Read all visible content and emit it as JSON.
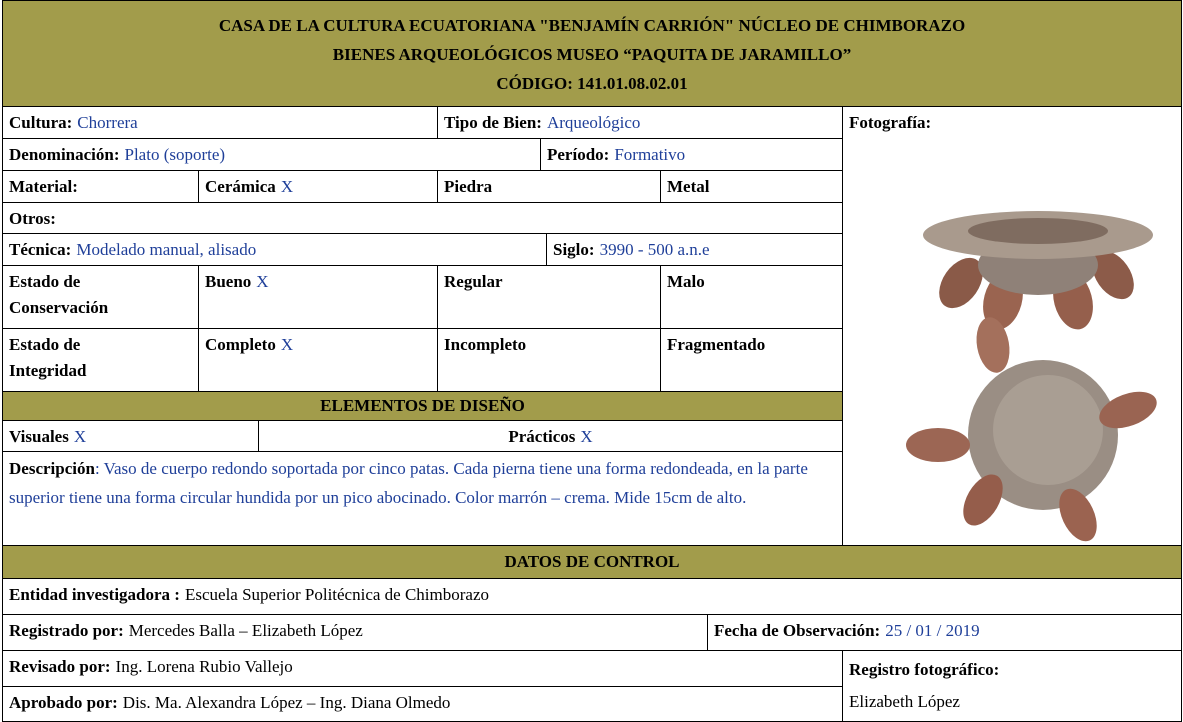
{
  "header": {
    "lines": [
      "CASA DE LA CULTURA ECUATORIANA \"BENJAMÍN CARRIÓN\" NÚCLEO DE CHIMBORAZO",
      "BIENES ARQUEOLÓGICOS MUSEO “PAQUITA DE JARAMILLO”",
      "CÓDIGO: 141.01.08.02.01"
    ]
  },
  "cultura": {
    "label": "Cultura:",
    "value": "Chorrera"
  },
  "tipo_bien": {
    "label": "Tipo de Bien:",
    "value": "Arqueológico"
  },
  "fotografia": {
    "label": "Fotografía:"
  },
  "denominacion": {
    "label": "Denominación:",
    "value": "Plato (soporte)"
  },
  "periodo": {
    "label": "Período:",
    "value": "Formativo"
  },
  "material": {
    "label": "Material:",
    "options": [
      {
        "label": "Cerámica",
        "mark": "X"
      },
      {
        "label": "Piedra"
      },
      {
        "label": "Metal"
      }
    ]
  },
  "otros": {
    "label": "Otros:"
  },
  "tecnica": {
    "label": "Técnica:",
    "value": "Modelado manual, alisado"
  },
  "siglo": {
    "label": "Siglo:",
    "value": "3990 - 500 a.n.e"
  },
  "conservacion": {
    "label": "Estado de Conservación",
    "options": [
      {
        "label": "Bueno",
        "mark": "X"
      },
      {
        "label": "Regular"
      },
      {
        "label": "Malo"
      }
    ]
  },
  "integridad": {
    "label": "Estado de Integridad",
    "options": [
      {
        "label": "Completo",
        "mark": "X"
      },
      {
        "label": "Incompleto"
      },
      {
        "label": "Fragmentado"
      }
    ]
  },
  "elementos": {
    "title": "ELEMENTOS DE DISEÑO",
    "visuales": {
      "label": "Visuales",
      "mark": "X"
    },
    "practicos": {
      "label": "Prácticos",
      "mark": "X"
    }
  },
  "descripcion": {
    "label": "Descripción",
    "value": ": Vaso de cuerpo redondo soportada por cinco patas. Cada pierna tiene una forma redondeada, en la parte superior tiene una forma circular hundida por un pico abocinado. Color marrón – crema. Mide 15cm de alto."
  },
  "control": {
    "title": "DATOS DE CONTROL",
    "entidad": {
      "label": "Entidad investigadora :",
      "value": "Escuela Superior Politécnica de Chimborazo"
    },
    "registrado": {
      "label": "Registrado por:",
      "value": "Mercedes Balla – Elizabeth López"
    },
    "fecha": {
      "label": "Fecha de Observación:",
      "value": "25 / 01 / 2019"
    },
    "revisado": {
      "label": "Revisado por:",
      "value": "Ing. Lorena Rubio Vallejo"
    },
    "aprobado": {
      "label": "Aprobado por:",
      "value": "Dis. Ma. Alexandra López – Ing. Diana Olmedo"
    },
    "registro_foto": {
      "label": "Registro fotográfico:",
      "value": "Elizabeth López"
    }
  }
}
